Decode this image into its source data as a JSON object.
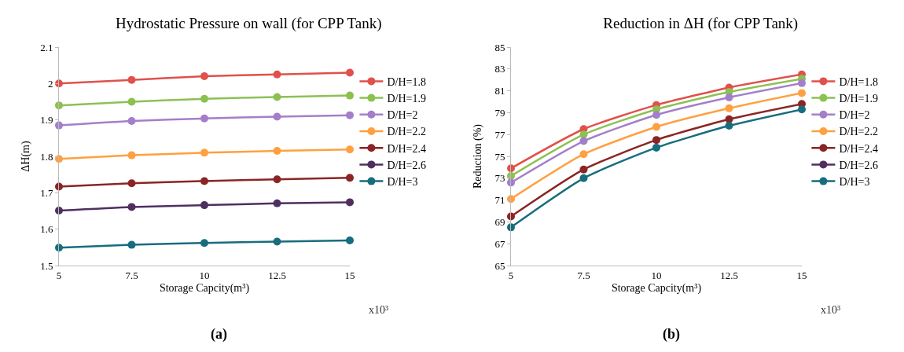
{
  "chart_data": [
    {
      "type": "line",
      "title": "Hydrostatic Pressure on wall (for CPP Tank)",
      "xlabel": "Storage Capcity(m³)",
      "ylabel": "ΔH(m)",
      "x": [
        5,
        7.5,
        10,
        12.5,
        15
      ],
      "xlim": [
        5,
        15
      ],
      "xticks": [
        5,
        7.5,
        10,
        12.5,
        15
      ],
      "ylim": [
        1.5,
        2.1
      ],
      "yticks": [
        1.5,
        1.6,
        1.7,
        1.8,
        1.9,
        2,
        2.1
      ],
      "grid": false,
      "legend": "right",
      "marker": "circle",
      "line_style": "solid",
      "annotations": [
        "x10³",
        "(a)"
      ],
      "series": [
        {
          "name": "D/H=1.8",
          "color": "#e0514b",
          "values": [
            2.0,
            2.01,
            2.02,
            2.025,
            2.03
          ]
        },
        {
          "name": "D/H=1.9",
          "color": "#8cc152",
          "values": [
            1.94,
            1.95,
            1.958,
            1.963,
            1.967
          ]
        },
        {
          "name": "D/H=2",
          "color": "#a47fc9",
          "values": [
            1.885,
            1.897,
            1.904,
            1.909,
            1.913
          ]
        },
        {
          "name": "D/H=2.2",
          "color": "#ffa040",
          "values": [
            1.793,
            1.803,
            1.81,
            1.815,
            1.819
          ]
        },
        {
          "name": "D/H=2.4",
          "color": "#8b2525",
          "values": [
            1.717,
            1.726,
            1.732,
            1.737,
            1.741
          ]
        },
        {
          "name": "D/H=2.6",
          "color": "#4f2f60",
          "values": [
            1.651,
            1.661,
            1.666,
            1.671,
            1.674
          ]
        },
        {
          "name": "D/H=3",
          "color": "#176d7e",
          "values": [
            1.549,
            1.557,
            1.562,
            1.566,
            1.569
          ]
        }
      ]
    },
    {
      "type": "line",
      "title": "Reduction in ΔH (for CPP Tank)",
      "xlabel": "Storage Capcity(m³)",
      "ylabel": "Reduction (%)",
      "x": [
        5,
        7.5,
        10,
        12.5,
        15
      ],
      "xlim": [
        5,
        15
      ],
      "xticks": [
        5,
        7.5,
        10,
        12.5,
        15
      ],
      "ylim": [
        65,
        85
      ],
      "yticks": [
        65,
        67,
        69,
        71,
        73,
        75,
        77,
        79,
        81,
        83,
        85
      ],
      "grid": false,
      "legend": "right",
      "marker": "circle",
      "line_style": "solid",
      "annotations": [
        "x10³",
        "(b)"
      ],
      "series": [
        {
          "name": "D/H=1.8",
          "color": "#e0514b",
          "values": [
            73.9,
            77.5,
            79.7,
            81.3,
            82.5
          ]
        },
        {
          "name": "D/H=1.9",
          "color": "#8cc152",
          "values": [
            73.2,
            77.0,
            79.3,
            80.9,
            82.1
          ]
        },
        {
          "name": "D/H=2",
          "color": "#a47fc9",
          "values": [
            72.6,
            76.4,
            78.8,
            80.4,
            81.7
          ]
        },
        {
          "name": "D/H=2.2",
          "color": "#ffa040",
          "values": [
            71.1,
            75.2,
            77.7,
            79.4,
            80.8
          ]
        },
        {
          "name": "D/H=2.4",
          "color": "#8b2525",
          "values": [
            69.5,
            73.8,
            76.5,
            78.4,
            79.8
          ]
        },
        {
          "name": "D/H=2.6",
          "color": "#4f2f60",
          "values": [
            null,
            null,
            null,
            null,
            null
          ]
        },
        {
          "name": "D/H=3",
          "color": "#176d7e",
          "values": [
            68.5,
            73.0,
            75.8,
            77.8,
            79.3
          ]
        }
      ]
    }
  ]
}
